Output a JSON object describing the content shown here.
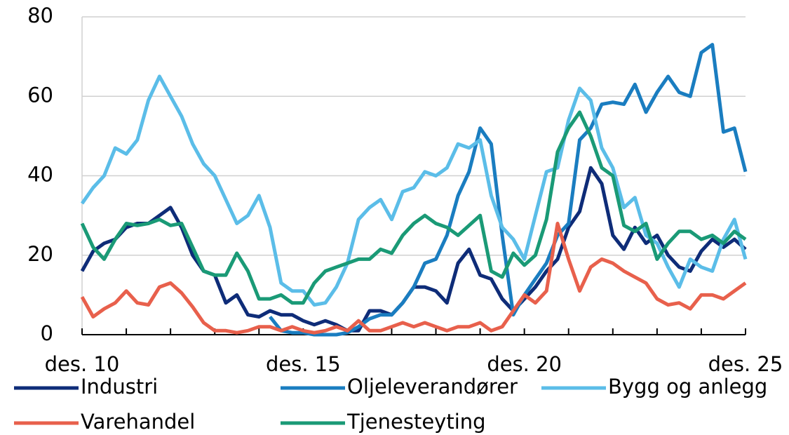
{
  "chart_data": {
    "type": "line",
    "categories": [
      "des. 10",
      null,
      null,
      null,
      null,
      null,
      null,
      null,
      null,
      null,
      null,
      null,
      null,
      null,
      null,
      null,
      null,
      null,
      null,
      null,
      "des. 15",
      null,
      null,
      null,
      null,
      null,
      null,
      null,
      null,
      null,
      null,
      null,
      null,
      null,
      null,
      null,
      null,
      null,
      null,
      null,
      "des. 20",
      null,
      null,
      null,
      null,
      null,
      null,
      null,
      null,
      null,
      null,
      null,
      null,
      null,
      null,
      null,
      null,
      null,
      null,
      null,
      "des. 25"
    ],
    "ylim": [
      0,
      80
    ],
    "yticks": [
      0,
      20,
      40,
      60,
      80
    ],
    "grid": true,
    "legend": "bottom",
    "series": [
      {
        "name": "Industri",
        "color": "#0e2c78",
        "values": [
          16,
          21,
          23,
          24,
          27,
          28,
          28,
          30,
          32,
          27,
          20,
          16,
          15,
          8,
          10,
          5,
          4.5,
          6,
          5,
          5,
          3.5,
          2.5,
          3.5,
          2.5,
          1,
          1,
          6,
          6,
          5,
          8,
          12,
          12,
          11,
          8,
          18,
          21.5,
          15,
          14,
          9,
          6,
          9,
          12,
          16,
          19,
          27,
          31,
          42,
          38,
          25,
          21.5,
          27,
          23,
          25,
          20,
          17,
          16,
          21,
          24,
          22,
          24,
          21.5
        ]
      },
      {
        "name": "Oljeleverandører",
        "color": "#1a7dc0",
        "values": [
          null,
          null,
          null,
          null,
          null,
          null,
          null,
          null,
          null,
          null,
          null,
          null,
          null,
          null,
          null,
          null,
          null,
          4.5,
          1,
          0.5,
          0.5,
          0,
          0,
          0,
          0.5,
          2,
          4,
          5,
          5,
          8,
          12,
          18,
          19,
          25,
          35,
          41,
          52,
          48,
          25,
          5,
          10,
          14,
          18,
          25,
          28,
          49,
          52,
          58,
          58.5,
          58,
          63,
          56,
          61,
          65,
          61,
          60,
          71,
          73,
          51,
          52,
          41
        ]
      },
      {
        "name": "Bygg og anlegg",
        "color": "#5bbde8",
        "values": [
          33,
          37,
          40,
          47,
          45.5,
          49,
          59,
          65,
          60,
          55,
          48,
          43,
          40,
          34,
          28,
          30,
          35,
          27,
          13,
          11,
          11,
          7.5,
          8,
          12,
          18,
          29,
          32,
          34,
          29,
          36,
          37,
          41,
          40,
          42,
          48,
          47,
          49,
          35,
          27,
          24,
          19,
          30,
          41,
          42,
          54,
          62,
          59,
          47,
          42,
          32,
          34.5,
          25,
          23,
          17,
          12,
          19,
          17,
          16,
          24,
          29,
          19
        ]
      },
      {
        "name": "Varehandel",
        "color": "#e8604c",
        "values": [
          9.5,
          4.5,
          6.5,
          8,
          11,
          8,
          7.5,
          12,
          13,
          10.5,
          7,
          3,
          1,
          1,
          0.5,
          1,
          2,
          2,
          1,
          2,
          1,
          0.5,
          1,
          2,
          1,
          3.5,
          1,
          1,
          2,
          3,
          2,
          3,
          2,
          1,
          2,
          2,
          3,
          1,
          2,
          6,
          10,
          8,
          11,
          28,
          19,
          11,
          17,
          19,
          18,
          16,
          14.5,
          13,
          9,
          7.5,
          8,
          6.5,
          10,
          10,
          9,
          11,
          13
        ]
      },
      {
        "name": "Tjenesteyting",
        "color": "#1a9a76",
        "values": [
          28,
          22,
          19,
          24,
          28,
          27.5,
          28,
          29,
          27.5,
          28,
          22,
          16,
          15,
          15,
          20.5,
          16,
          9,
          9,
          10,
          8,
          8,
          13,
          16,
          17,
          18,
          19,
          19,
          21.5,
          20.5,
          25,
          28,
          30,
          28,
          27,
          25,
          27.5,
          30,
          16,
          14.5,
          20.5,
          17.5,
          20,
          29,
          46,
          52,
          56,
          50,
          42,
          40,
          27.5,
          26,
          28,
          19,
          23,
          26,
          26,
          24,
          25,
          23,
          26,
          24
        ]
      }
    ]
  }
}
